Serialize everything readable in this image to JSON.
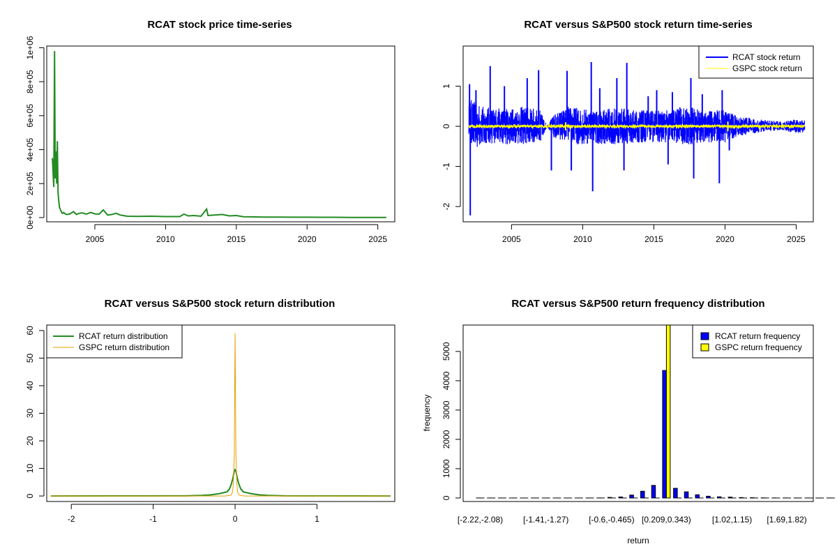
{
  "chart_data": [
    {
      "id": "price",
      "type": "line",
      "title": "RCAT stock price time-series",
      "xlabel": "",
      "ylabel": "",
      "xlim": [
        2001.6,
        2026.2
      ],
      "ylim": [
        -25000,
        1010000
      ],
      "x_ticks": [
        2005,
        2010,
        2015,
        2020,
        2025
      ],
      "x_tick_labels": [
        "2005",
        "2010",
        "2015",
        "2020",
        "2025"
      ],
      "y_ticks": [
        0,
        200000,
        400000,
        600000,
        800000,
        1000000
      ],
      "y_tick_labels": [
        "0e+00",
        "2e+05",
        "4e+05",
        "6e+05",
        "8e+05",
        "1e+06"
      ],
      "series": [
        {
          "color": "#228B22",
          "x": [
            2002.0,
            2002.1,
            2002.15,
            2002.2,
            2002.25,
            2002.3,
            2002.35,
            2002.4,
            2002.45,
            2002.5,
            2002.6,
            2002.7,
            2002.8,
            2002.9,
            2003.0,
            2003.2,
            2003.5,
            2003.7,
            2003.9,
            2004.1,
            2004.4,
            2004.7,
            2005.0,
            2005.3,
            2005.6,
            2005.9,
            2006.2,
            2006.5,
            2006.8,
            2007.0,
            2007.3,
            2008.0,
            2009.0,
            2010.0,
            2011.0,
            2011.3,
            2011.6,
            2012.0,
            2012.5,
            2012.9,
            2013.0,
            2013.5,
            2014.0,
            2014.5,
            2015.0,
            2015.5,
            2016.0,
            2017.0,
            2018.0,
            2019.0,
            2020.0,
            2021.0,
            2022.0,
            2023.0,
            2024.0,
            2025.0,
            2025.6
          ],
          "y": [
            350000,
            180000,
            980000,
            230000,
            390000,
            200000,
            450000,
            150000,
            100000,
            60000,
            40000,
            25000,
            30000,
            22000,
            18000,
            20000,
            35000,
            18000,
            25000,
            28000,
            20000,
            30000,
            22000,
            20000,
            45000,
            15000,
            18000,
            25000,
            15000,
            12000,
            8000,
            7000,
            8000,
            6000,
            6000,
            20000,
            10000,
            12000,
            8000,
            50000,
            12000,
            15000,
            18000,
            10000,
            12000,
            5000,
            4000,
            3000,
            2500,
            2000,
            2000,
            1500,
            1500,
            1000,
            1000,
            1000,
            1000
          ]
        }
      ]
    },
    {
      "id": "returns",
      "type": "line",
      "title": "RCAT versus S&P500 stock return time-series",
      "xlabel": "",
      "ylabel": "",
      "xlim": [
        2001.6,
        2026.2
      ],
      "ylim": [
        -2.38,
        2.0
      ],
      "x_ticks": [
        2005,
        2010,
        2015,
        2020,
        2025
      ],
      "x_tick_labels": [
        "2005",
        "2010",
        "2015",
        "2020",
        "2025"
      ],
      "y_ticks": [
        -2,
        -1,
        0,
        1
      ],
      "y_tick_labels": [
        "-2",
        "-1",
        "0",
        "1"
      ],
      "legend": "top-right",
      "series": [
        {
          "name": "RCAT stock return",
          "color": "#0000FF",
          "envelope_x": [
            2002,
            2003,
            2004,
            2005,
            2006,
            2007,
            2007.5,
            2008,
            2009,
            2010,
            2011,
            2012,
            2013,
            2014,
            2015,
            2016,
            2017,
            2018,
            2019,
            2020,
            2021,
            2022,
            2023,
            2024,
            2025,
            2025.6
          ],
          "envelope_hi": [
            0.7,
            0.5,
            0.45,
            0.45,
            0.5,
            0.4,
            0.02,
            0.3,
            0.5,
            0.45,
            0.4,
            0.45,
            0.45,
            0.4,
            0.4,
            0.4,
            0.5,
            0.45,
            0.4,
            0.4,
            0.25,
            0.2,
            0.15,
            0.12,
            0.18,
            0.15
          ],
          "envelope_lo": [
            -0.6,
            -0.45,
            -0.45,
            -0.45,
            -0.45,
            -0.4,
            -0.02,
            -0.3,
            -0.45,
            -0.45,
            -0.45,
            -0.45,
            -0.45,
            -0.4,
            -0.4,
            -0.4,
            -0.45,
            -0.45,
            -0.4,
            -0.4,
            -0.25,
            -0.18,
            -0.12,
            -0.1,
            -0.18,
            -0.15
          ],
          "spikes_x": [
            2002.05,
            2002.1,
            2002.5,
            2003.5,
            2004.5,
            2006.1,
            2006.9,
            2007.8,
            2008.9,
            2009.2,
            2010.6,
            2010.7,
            2011.2,
            2012.4,
            2012.9,
            2013.1,
            2014.6,
            2015.2,
            2016.0,
            2016.3,
            2017.6,
            2017.8,
            2018.4,
            2019.6,
            2019.8,
            2020.3
          ],
          "spikes_y": [
            1.05,
            -2.22,
            0.9,
            1.5,
            1.0,
            1.2,
            1.4,
            -1.1,
            1.38,
            -1.1,
            1.6,
            -1.62,
            0.95,
            1.2,
            -1.1,
            1.58,
            0.75,
            0.9,
            -0.95,
            0.85,
            1.2,
            -1.3,
            0.8,
            -1.42,
            0.9,
            -0.6
          ]
        },
        {
          "name": "GSPC stock return",
          "color": "#FFFF00",
          "amplitude": 0.03,
          "bursts_x": [
            2008.8,
            2020.2
          ],
          "bursts_y": [
            0.1,
            -0.12
          ]
        }
      ]
    },
    {
      "id": "density",
      "type": "line",
      "title": "RCAT versus S&P500 stock return distribution",
      "xlabel": "",
      "ylabel": "",
      "xlim": [
        -2.3,
        1.95
      ],
      "ylim": [
        -2,
        62
      ],
      "x_ticks": [
        -2,
        -1,
        0,
        1
      ],
      "x_tick_labels": [
        "-2",
        "-1",
        "0",
        "1"
      ],
      "y_ticks": [
        0,
        10,
        20,
        30,
        40,
        50,
        60
      ],
      "y_tick_labels": [
        "0",
        "10",
        "20",
        "30",
        "40",
        "50",
        "60"
      ],
      "legend": "top-left",
      "series": [
        {
          "name": "RCAT return distribution",
          "color": "#228B22",
          "x": [
            -2.25,
            -0.6,
            -0.4,
            -0.3,
            -0.2,
            -0.1,
            -0.07,
            -0.05,
            -0.03,
            -0.02,
            -0.01,
            0.0,
            0.01,
            0.02,
            0.03,
            0.05,
            0.07,
            0.1,
            0.2,
            0.3,
            0.4,
            0.6,
            1.9
          ],
          "y": [
            0,
            0.05,
            0.2,
            0.4,
            0.8,
            1.5,
            2.5,
            4,
            6,
            7.5,
            9,
            9.5,
            9,
            7.5,
            6,
            4,
            2.5,
            1.5,
            0.8,
            0.4,
            0.2,
            0.05,
            0
          ]
        },
        {
          "name": "GSPC return distribution",
          "color": "#E69F00",
          "x": [
            -2.25,
            -0.12,
            -0.05,
            -0.03,
            -0.02,
            -0.01,
            -0.005,
            0.0,
            0.005,
            0.01,
            0.02,
            0.03,
            0.05,
            0.12,
            1.9
          ],
          "y": [
            0,
            0,
            0.3,
            1.5,
            5,
            15,
            39,
            59,
            39,
            15,
            5,
            1.5,
            0.3,
            0,
            0
          ]
        }
      ]
    },
    {
      "id": "histogram",
      "type": "bar",
      "title": "RCAT versus S&P500 return frequency distribution",
      "xlabel": "return",
      "ylabel": "frequency",
      "ylim": [
        -120,
        5900
      ],
      "y_ticks": [
        0,
        1000,
        2000,
        3000,
        4000,
        5000
      ],
      "y_tick_labels": [
        "0",
        "1000",
        "2000",
        "3000",
        "4000",
        "5000"
      ],
      "x_tick_labels": [
        "[-2.22,-2.08)",
        "[-1.41,-1.27)",
        "[-0.6,-0.465)",
        "[0.209,0.343)",
        "[1.02,1.15)",
        "[1.69,1.82)"
      ],
      "x_tick_categories": [
        0,
        6,
        12,
        17,
        23,
        28
      ],
      "legend": "top-right",
      "series": [
        {
          "name": "RCAT return frequency",
          "color": "#0000FF",
          "values": [
            1,
            0,
            0,
            0,
            0,
            0,
            0,
            0,
            0,
            0,
            1,
            2,
            20,
            35,
            100,
            230,
            430,
            4350,
            330,
            210,
            110,
            60,
            40,
            30,
            15,
            10,
            5,
            3,
            2,
            1,
            1,
            0,
            1
          ]
        },
        {
          "name": "GSPC return frequency",
          "color": "#FFFF00",
          "values": [
            0,
            0,
            0,
            0,
            0,
            0,
            0,
            0,
            0,
            0,
            0,
            0,
            0,
            0,
            0,
            0,
            0,
            5900,
            0,
            0,
            0,
            0,
            0,
            0,
            0,
            0,
            0,
            0,
            0,
            0,
            0,
            0,
            0
          ]
        }
      ]
    }
  ]
}
